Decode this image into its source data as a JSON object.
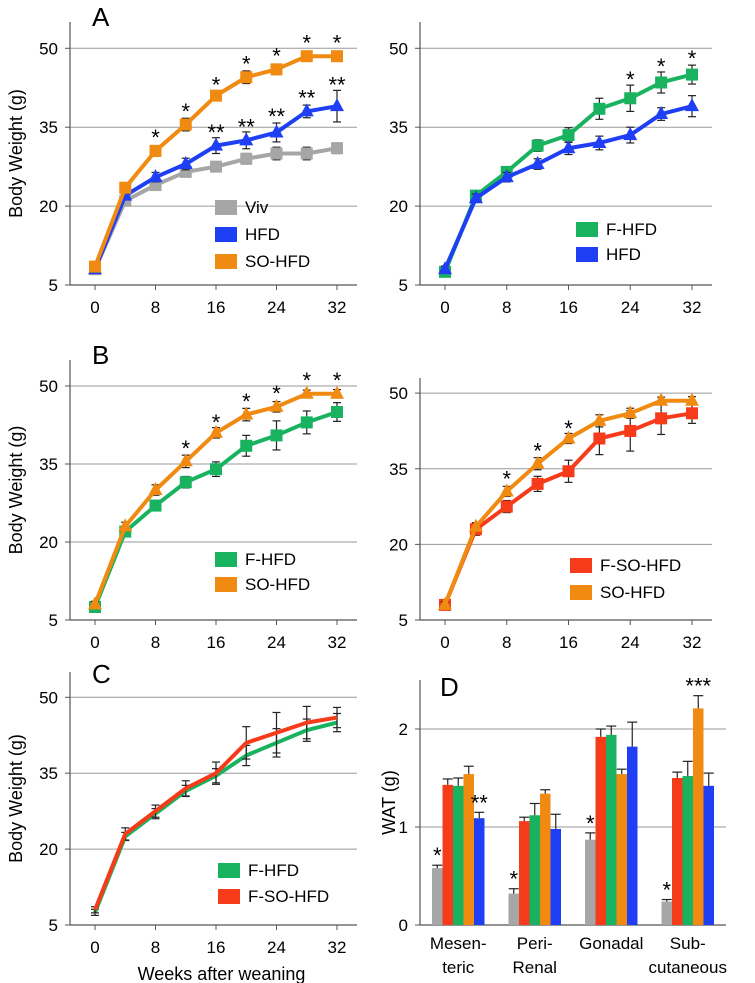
{
  "figure": {
    "colors": {
      "Viv": "#a6a6a6",
      "HFD": "#1f3ff5",
      "SO-HFD": "#f08a10",
      "F-HFD": "#19b360",
      "F-SO-HFD": "#f63b1a"
    },
    "shared_xlabel": "Weeks after weaning"
  },
  "chart_data": [
    {
      "panel_label": "A",
      "type": "line",
      "ylabel": "Body Weight (g)",
      "y_ticks": [
        5,
        20,
        35,
        50
      ],
      "x_ticks": [
        0,
        8,
        16,
        24,
        32
      ],
      "ylim": [
        5,
        55
      ],
      "xlim": [
        0,
        32
      ],
      "grid": "horizontal",
      "legend": "bottom-center",
      "x": [
        0,
        4,
        8,
        12,
        16,
        20,
        24,
        28,
        32
      ],
      "series": [
        {
          "name": "Viv",
          "marker": "square",
          "values": [
            8.0,
            21.0,
            24.0,
            26.5,
            27.5,
            29.0,
            30.0,
            30.0,
            31.0
          ],
          "errors": [
            0.6,
            0.8,
            0.9,
            0.9,
            0.9,
            1.0,
            1.2,
            1.2,
            1.0
          ]
        },
        {
          "name": "HFD",
          "marker": "triangle",
          "values": [
            8.0,
            22.0,
            25.5,
            28.0,
            31.5,
            32.5,
            34.0,
            38.0,
            39.0
          ],
          "errors": [
            0.6,
            0.8,
            0.9,
            1.1,
            1.5,
            1.6,
            1.8,
            1.2,
            3.0
          ]
        },
        {
          "name": "SO-HFD",
          "marker": "square",
          "values": [
            8.5,
            23.5,
            30.5,
            35.5,
            41.0,
            44.5,
            46.0,
            48.5,
            48.5
          ],
          "errors": [
            0.6,
            0.8,
            1.0,
            1.2,
            0.9,
            1.2,
            1.0,
            0.7,
            0.7
          ]
        }
      ],
      "annotations": [
        {
          "x": 8,
          "text": "*",
          "y": 33.5
        },
        {
          "x": 12,
          "text": "*",
          "y": 38.5
        },
        {
          "x": 16,
          "text": "*",
          "y": 43.5
        },
        {
          "x": 20,
          "text": "*",
          "y": 47.5
        },
        {
          "x": 24,
          "text": "*",
          "y": 49
        },
        {
          "x": 28,
          "text": "*",
          "y": 51.5
        },
        {
          "x": 32,
          "text": "*",
          "y": 51.5
        },
        {
          "x": 16,
          "text": "**",
          "y": 34.5
        },
        {
          "x": 20,
          "text": "**",
          "y": 35.5
        },
        {
          "x": 24,
          "text": "**",
          "y": 37.5
        },
        {
          "x": 28,
          "text": "**",
          "y": 41
        },
        {
          "x": 32,
          "text": "**",
          "y": 43.5
        }
      ]
    },
    {
      "panel_label": "",
      "type": "line",
      "ylabel": "",
      "y_ticks": [
        5,
        20,
        35,
        50
      ],
      "x_ticks": [
        0,
        8,
        16,
        24,
        32
      ],
      "ylim": [
        5,
        55
      ],
      "xlim": [
        0,
        32
      ],
      "grid": "horizontal",
      "legend": "bottom-right",
      "x": [
        0,
        4,
        8,
        12,
        16,
        20,
        24,
        28,
        32
      ],
      "series": [
        {
          "name": "F-HFD",
          "marker": "square",
          "values": [
            7.5,
            22.0,
            26.5,
            31.5,
            33.5,
            38.5,
            40.5,
            43.5,
            45.0
          ],
          "errors": [
            0.6,
            0.8,
            1.0,
            1.1,
            1.4,
            2.0,
            2.5,
            2.0,
            1.8
          ]
        },
        {
          "name": "HFD",
          "marker": "triangle",
          "values": [
            8.0,
            21.5,
            25.5,
            28.0,
            31.0,
            32.0,
            33.5,
            37.5,
            39.0
          ],
          "errors": [
            0.6,
            0.8,
            0.9,
            1.0,
            1.2,
            1.3,
            1.5,
            1.2,
            2.0
          ]
        }
      ],
      "annotations": [
        {
          "x": 24,
          "text": "*",
          "y": 44.5
        },
        {
          "x": 28,
          "text": "*",
          "y": 47
        },
        {
          "x": 32,
          "text": "*",
          "y": 48.5
        }
      ]
    },
    {
      "panel_label": "B",
      "type": "line",
      "ylabel": "Body Weight (g)",
      "y_ticks": [
        5,
        20,
        35,
        50
      ],
      "x_ticks": [
        0,
        8,
        16,
        24,
        32
      ],
      "ylim": [
        5,
        55
      ],
      "xlim": [
        0,
        32
      ],
      "grid": "horizontal",
      "legend": "bottom-center",
      "x": [
        0,
        4,
        8,
        12,
        16,
        20,
        24,
        28,
        32
      ],
      "series": [
        {
          "name": "F-HFD",
          "marker": "square",
          "values": [
            7.5,
            22.0,
            27.0,
            31.5,
            34.0,
            38.5,
            40.5,
            43.0,
            45.0
          ],
          "errors": [
            0.6,
            0.8,
            1.0,
            1.1,
            1.4,
            2.0,
            2.8,
            2.2,
            1.8
          ]
        },
        {
          "name": "SO-HFD",
          "marker": "triangle",
          "values": [
            8.0,
            23.0,
            30.0,
            35.5,
            41.0,
            44.5,
            46.0,
            48.5,
            48.5
          ],
          "errors": [
            0.6,
            0.8,
            1.0,
            1.2,
            1.0,
            1.2,
            1.0,
            0.7,
            0.8
          ]
        }
      ],
      "annotations": [
        {
          "x": 12,
          "text": "*",
          "y": 38.5
        },
        {
          "x": 16,
          "text": "*",
          "y": 43.5
        },
        {
          "x": 20,
          "text": "*",
          "y": 47.5
        },
        {
          "x": 24,
          "text": "*",
          "y": 49
        },
        {
          "x": 28,
          "text": "*",
          "y": 51.5
        },
        {
          "x": 32,
          "text": "*",
          "y": 51.5
        }
      ]
    },
    {
      "panel_label": "",
      "type": "line",
      "ylabel": "",
      "y_ticks": [
        5,
        20,
        35,
        50
      ],
      "x_ticks": [
        0,
        8,
        16,
        24,
        32
      ],
      "ylim": [
        5,
        53
      ],
      "xlim": [
        0,
        32
      ],
      "grid": "horizontal",
      "legend": "bottom-right",
      "x": [
        0,
        4,
        8,
        12,
        16,
        20,
        24,
        28,
        32
      ],
      "series": [
        {
          "name": "F-SO-HFD",
          "marker": "square",
          "values": [
            8.0,
            23.0,
            27.5,
            32.0,
            34.5,
            41.0,
            42.5,
            45.0,
            46.0
          ],
          "errors": [
            0.6,
            1.2,
            1.2,
            1.5,
            2.2,
            3.2,
            4.0,
            3.2,
            2.0
          ]
        },
        {
          "name": "SO-HFD",
          "marker": "triangle",
          "values": [
            8.0,
            23.5,
            30.5,
            36.0,
            41.0,
            44.5,
            46.0,
            48.5,
            48.5
          ],
          "errors": [
            0.6,
            0.8,
            1.0,
            1.2,
            1.0,
            1.2,
            1.0,
            0.7,
            0.8
          ]
        }
      ],
      "annotations": [
        {
          "x": 8,
          "text": "*",
          "y": 33.5
        },
        {
          "x": 12,
          "text": "*",
          "y": 39
        },
        {
          "x": 16,
          "text": "*",
          "y": 43.5
        }
      ]
    },
    {
      "panel_label": "C",
      "type": "line",
      "ylabel": "Body Weight (g)",
      "xlabel": "Weeks after weaning",
      "y_ticks": [
        5,
        20,
        35,
        50
      ],
      "x_ticks": [
        0,
        8,
        16,
        24,
        32
      ],
      "ylim": [
        5,
        55
      ],
      "xlim": [
        0,
        32
      ],
      "grid": "horizontal",
      "legend": "bottom-center",
      "x": [
        0,
        4,
        8,
        12,
        16,
        20,
        24,
        28,
        32
      ],
      "series": [
        {
          "name": "F-HFD",
          "marker": "none",
          "values": [
            7.5,
            22.5,
            27.0,
            31.5,
            34.5,
            38.5,
            41.0,
            43.5,
            45.0
          ],
          "errors": [
            0.6,
            0.8,
            1.0,
            1.1,
            1.4,
            2.0,
            2.8,
            2.2,
            1.8
          ]
        },
        {
          "name": "F-SO-HFD",
          "marker": "none",
          "values": [
            8.0,
            23.0,
            27.5,
            32.0,
            35.0,
            41.0,
            43.0,
            45.0,
            46.0
          ],
          "errors": [
            0.6,
            1.2,
            1.2,
            1.5,
            2.2,
            3.2,
            4.0,
            3.2,
            2.0
          ]
        }
      ],
      "annotations": []
    },
    {
      "panel_label": "D",
      "type": "bar",
      "ylabel": "WAT (g)",
      "y_ticks": [
        0,
        1,
        2
      ],
      "ylim": [
        0,
        2.5
      ],
      "grid": "horizontal",
      "legend": "none",
      "categories": [
        "Mesen-\nteric",
        "Peri-\nRenal",
        "Gonadal",
        "Sub-\ncutaneous"
      ],
      "series": [
        {
          "name": "Viv",
          "values": [
            0.58,
            0.32,
            0.87,
            0.24
          ],
          "errors": [
            0.03,
            0.05,
            0.07,
            0.02
          ]
        },
        {
          "name": "F-SO-HFD",
          "values": [
            1.43,
            1.06,
            1.92,
            1.5
          ],
          "errors": [
            0.06,
            0.04,
            0.08,
            0.06
          ]
        },
        {
          "name": "F-HFD",
          "values": [
            1.42,
            1.12,
            1.94,
            1.52
          ],
          "errors": [
            0.08,
            0.12,
            0.09,
            0.15
          ]
        },
        {
          "name": "SO-HFD",
          "values": [
            1.54,
            1.34,
            1.54,
            2.21
          ],
          "errors": [
            0.08,
            0.04,
            0.05,
            0.13
          ]
        },
        {
          "name": "HFD",
          "values": [
            1.09,
            0.98,
            1.82,
            1.42
          ],
          "errors": [
            0.06,
            0.15,
            0.25,
            0.13
          ]
        }
      ],
      "annotations": [
        {
          "category": 0,
          "series": 0,
          "text": "*"
        },
        {
          "category": 0,
          "series": 4,
          "text": "**"
        },
        {
          "category": 1,
          "series": 0,
          "text": "*"
        },
        {
          "category": 2,
          "series": 0,
          "text": "*"
        },
        {
          "category": 3,
          "series": 0,
          "text": "*"
        },
        {
          "category": 3,
          "series": 3,
          "text": "***"
        }
      ]
    }
  ]
}
